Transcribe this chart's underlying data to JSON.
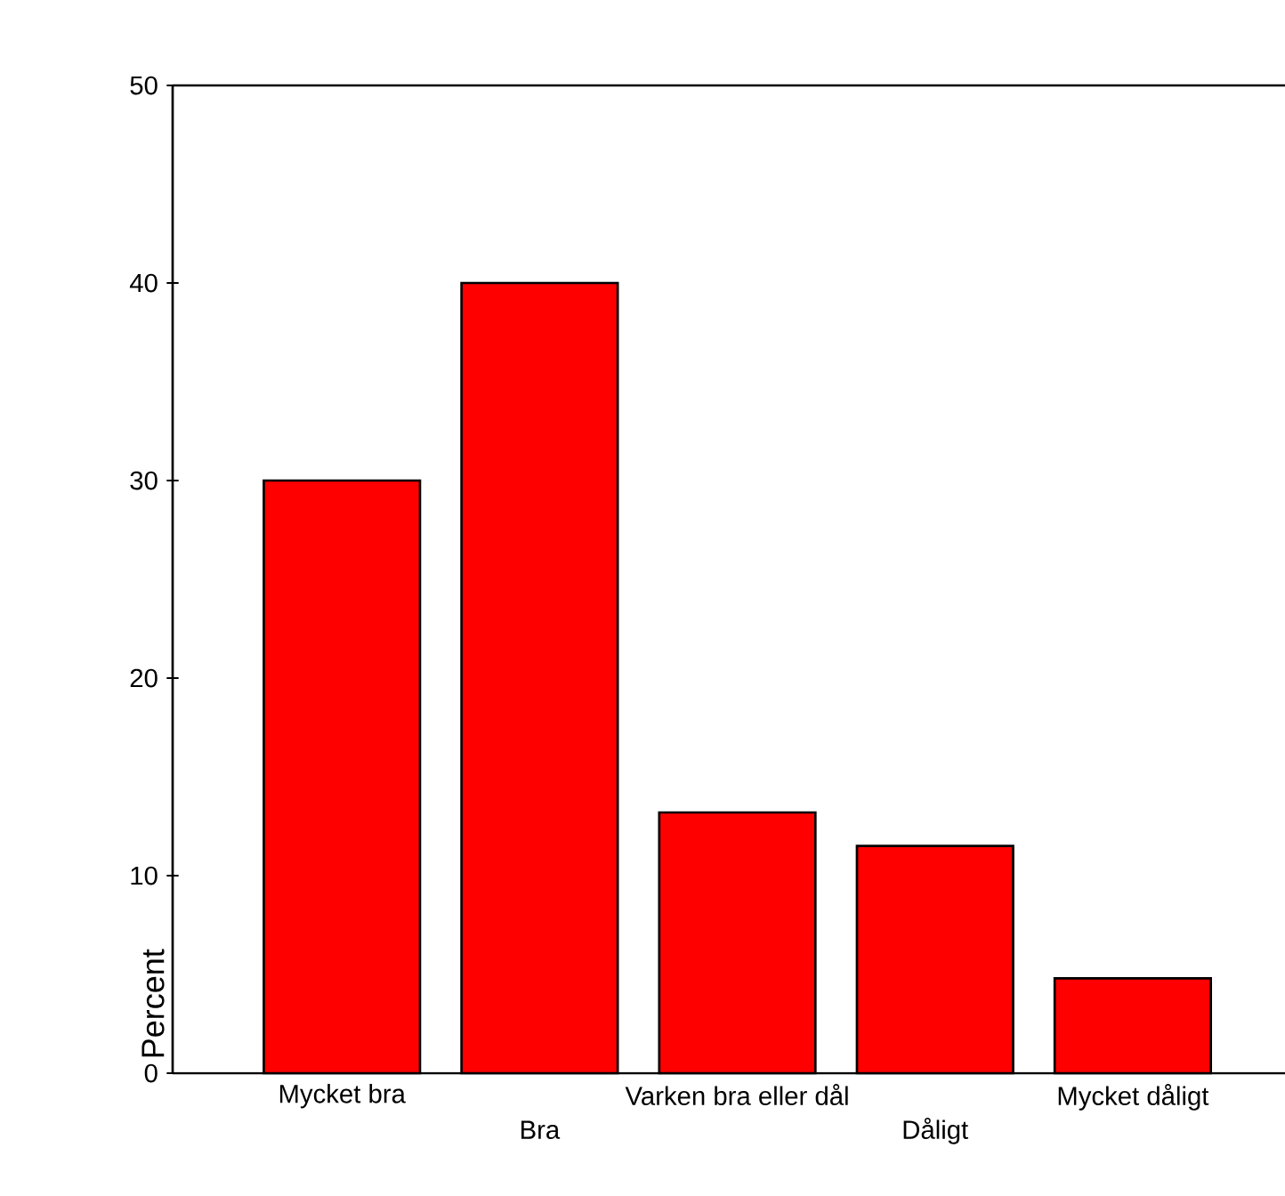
{
  "chart_data": {
    "type": "bar",
    "ylabel": "Percent",
    "categories": [
      "Mycket bra",
      "Bra",
      "Varken bra eller dål",
      "Dåligt",
      "Mycket dåligt"
    ],
    "values": [
      30,
      40,
      13.2,
      11.5,
      4.8
    ],
    "color": "#ff0000",
    "ylim": [
      0,
      50
    ],
    "yticks": [
      0,
      10,
      20,
      30,
      40,
      50
    ]
  }
}
